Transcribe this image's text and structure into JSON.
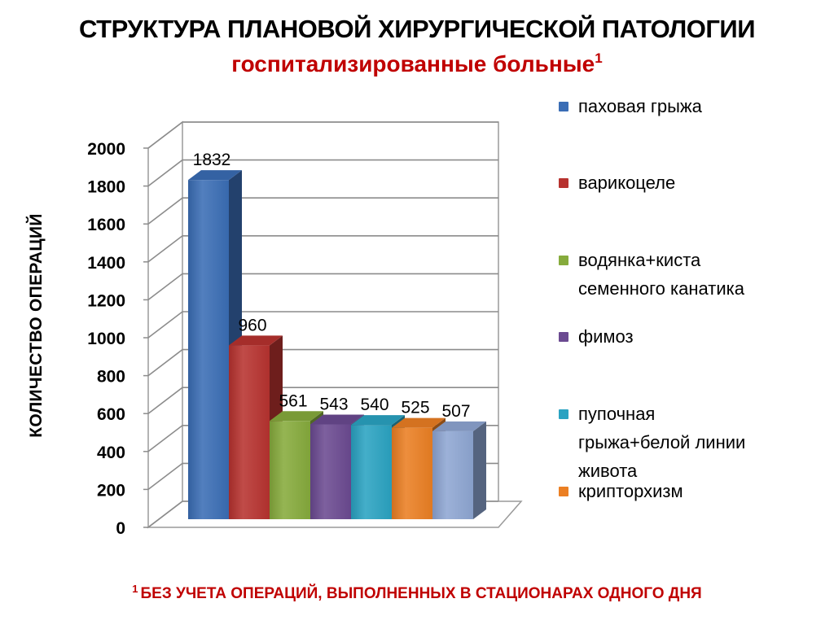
{
  "chart_data": {
    "type": "bar",
    "title": "СТРУКТУРА ПЛАНОВОЙ ХИРУРГИЧЕСКОЙ ПАТОЛОГИИ",
    "subtitle": "госпитализированные больные",
    "subtitle_sup": "1",
    "ylabel": "КОЛИЧЕСТВО ОПЕРАЦИЙ",
    "ylim": [
      0,
      2000
    ],
    "yticks": [
      "0",
      "200",
      "400",
      "600",
      "800",
      "1000",
      "1200",
      "1400",
      "1600",
      "1800",
      "2000"
    ],
    "grid": true,
    "legend_position": "right",
    "series": [
      {
        "name": "паховая грыжа",
        "value": 1832,
        "label": "1832",
        "color": "#3a6db5"
      },
      {
        "name": "варикоцеле",
        "value": 960,
        "label": "960",
        "color": "#b7322f"
      },
      {
        "name": "водянка+киста семенного канатика",
        "value": 561,
        "label": "561",
        "color": "#86ab3c"
      },
      {
        "name": "фимоз",
        "value": 543,
        "label": "543",
        "color": "#6b4a91"
      },
      {
        "name": "пупочная грыжа+белой линии живота",
        "value": 540,
        "label": "540",
        "color": "#2aa3c2"
      },
      {
        "name": "крипторхизм",
        "value": 525,
        "label": "525",
        "color": "#eb7f23"
      },
      {
        "name": "",
        "value": 507,
        "label": "507",
        "color": "#8ea6d3"
      }
    ]
  },
  "legend": [
    {
      "lines": [
        "паховая грыжа"
      ],
      "color": "#3a6db5"
    },
    {
      "lines": [
        "варикоцеле"
      ],
      "color": "#b7322f"
    },
    {
      "lines": [
        "водянка+киста",
        "семенного канатика"
      ],
      "color": "#86ab3c"
    },
    {
      "lines": [
        "фимоз"
      ],
      "color": "#6b4a91"
    },
    {
      "lines": [
        "пупочная",
        "грыжа+белой линии",
        "живота"
      ],
      "color": "#2aa3c2"
    },
    {
      "lines": [
        "крипторхизм"
      ],
      "color": "#eb7f23"
    }
  ],
  "footnote": {
    "sup": "1",
    "text": "БЕЗ УЧЕТА ОПЕРАЦИЙ, ВЫПОЛНЕННЫХ В СТАЦИОНАРАХ ОДНОГО ДНЯ"
  }
}
